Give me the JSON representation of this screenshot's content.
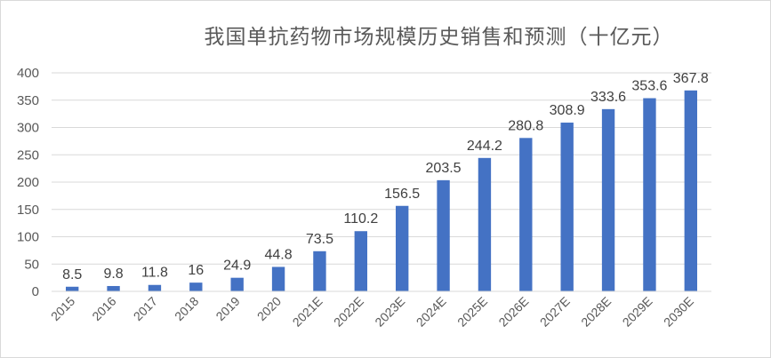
{
  "chart_data": {
    "type": "bar",
    "title": "我国单抗药物市场规模历史销售和预测（十亿元）",
    "categories": [
      "2015",
      "2016",
      "2017",
      "2018",
      "2019",
      "2020",
      "2021E",
      "2022E",
      "2023E",
      "2024E",
      "2025E",
      "2026E",
      "2027E",
      "2028E",
      "2029E",
      "2030E"
    ],
    "values": [
      8.5,
      9.8,
      11.8,
      16,
      24.9,
      44.8,
      73.5,
      110.2,
      156.5,
      203.5,
      244.2,
      280.8,
      308.9,
      333.6,
      353.6,
      367.8
    ],
    "yticks": [
      "0",
      "50",
      "100",
      "150",
      "200",
      "250",
      "300",
      "350",
      "400"
    ],
    "ylim": [
      0,
      400
    ],
    "bar_color": "#4472C4",
    "grid": true,
    "legend": "none"
  }
}
